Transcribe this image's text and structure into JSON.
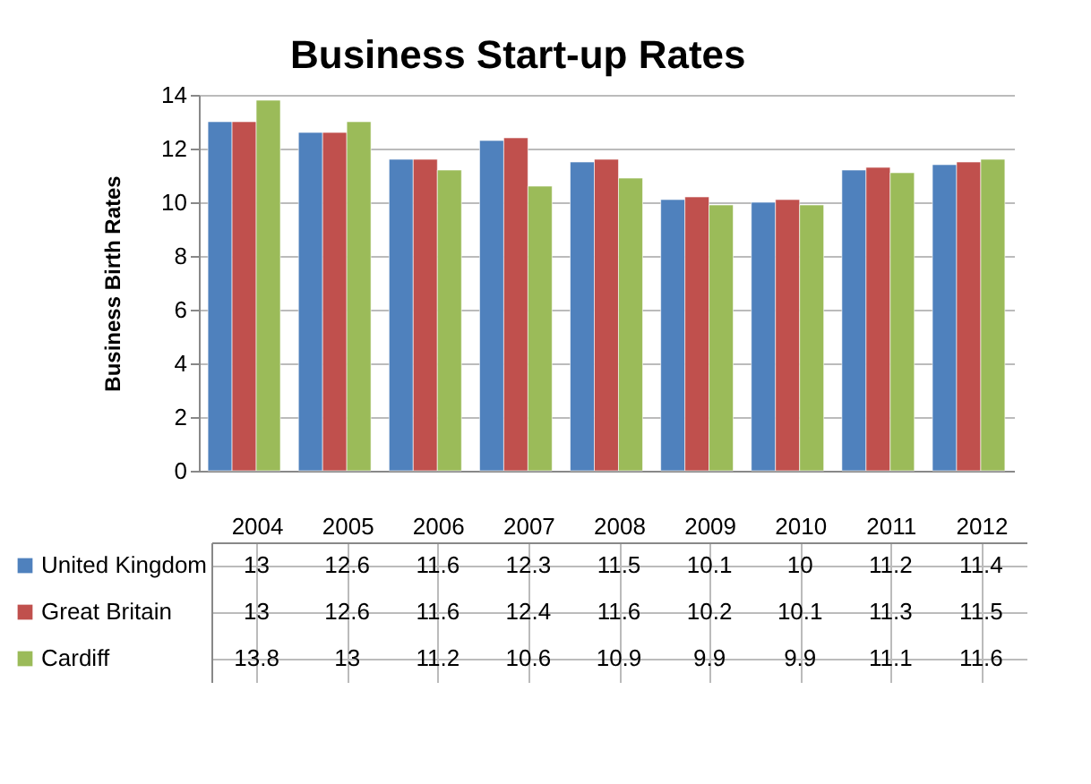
{
  "chart_data": {
    "type": "bar",
    "title": "Business Start-up Rates",
    "ylabel": "Business Birth Rates",
    "categories": [
      "2004",
      "2005",
      "2006",
      "2007",
      "2008",
      "2009",
      "2010",
      "2011",
      "2012"
    ],
    "series": [
      {
        "name": "United Kingdom",
        "color": "#4f81bd",
        "values": [
          13,
          12.6,
          11.6,
          12.3,
          11.5,
          10.1,
          10,
          11.2,
          11.4
        ]
      },
      {
        "name": "Great Britain",
        "color": "#c0504d",
        "values": [
          13,
          12.6,
          11.6,
          12.4,
          11.6,
          10.2,
          10.1,
          11.3,
          11.5
        ]
      },
      {
        "name": "Cardiff",
        "color": "#9bbb59",
        "values": [
          13.8,
          13,
          11.2,
          10.6,
          10.9,
          9.9,
          9.9,
          11.1,
          11.6
        ]
      }
    ],
    "ylim": [
      0,
      14
    ],
    "yticks": [
      0,
      2,
      4,
      6,
      8,
      10,
      12,
      14
    ],
    "grid": "y",
    "data_labels": true,
    "legend": "bottom left"
  }
}
